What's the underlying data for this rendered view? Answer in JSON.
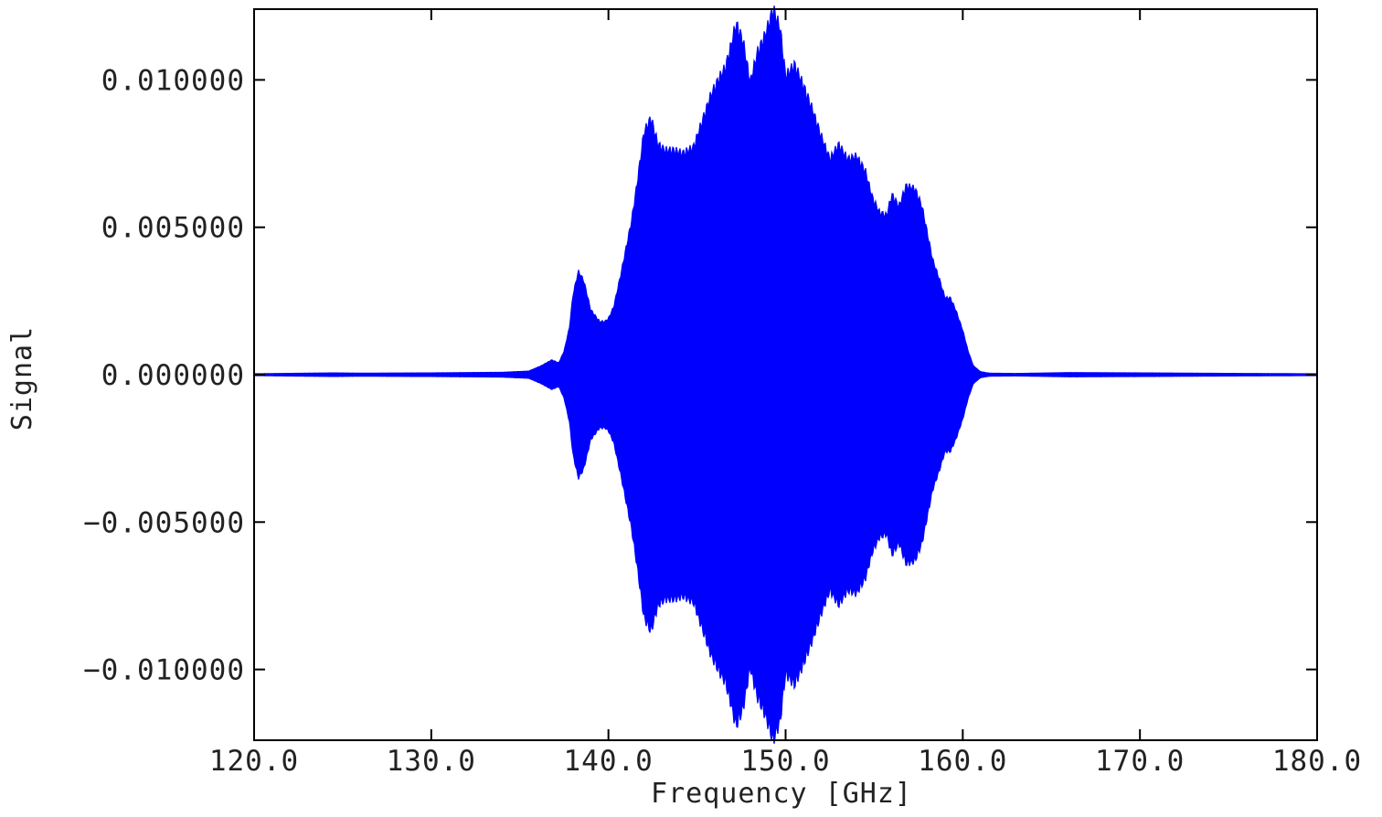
{
  "chart_data": {
    "type": "area",
    "xlabel": "Frequency [GHz]",
    "ylabel": "Signal",
    "xlim": [
      120.0,
      180.0
    ],
    "ylim": [
      -0.0124,
      0.0124
    ],
    "x_ticks": [
      "120.0",
      "130.0",
      "140.0",
      "150.0",
      "160.0",
      "170.0",
      "180.0"
    ],
    "x_tick_values": [
      120,
      130,
      140,
      150,
      160,
      170,
      180
    ],
    "y_ticks": [
      "0.010000",
      "0.005000",
      "0.000000",
      "−0.005000",
      "−0.010000"
    ],
    "y_tick_values": [
      0.01,
      0.005,
      0.0,
      -0.005,
      -0.01
    ],
    "grid": false,
    "legend": "none",
    "series": [
      {
        "color": "#0000ff",
        "style": "rapidly oscillating signal drawn as filled envelope symmetric about zero",
        "envelope_x": [
          120.0,
          124.5,
          126.0,
          130.0,
          134.0,
          135.5,
          136.2,
          136.8,
          137.2,
          137.5,
          137.8,
          138.0,
          138.3,
          138.6,
          139.0,
          139.5,
          139.8,
          140.0,
          140.3,
          140.7,
          141.0,
          141.3,
          141.6,
          142.0,
          142.4,
          142.8,
          143.2,
          143.7,
          144.2,
          144.8,
          145.3,
          145.8,
          146.3,
          146.6,
          146.9,
          147.2,
          147.6,
          148.0,
          148.4,
          148.7,
          148.9,
          149.3,
          149.7,
          150.0,
          150.5,
          151.0,
          151.5,
          152.0,
          152.5,
          153.0,
          153.5,
          154.0,
          154.5,
          154.9,
          155.3,
          155.7,
          156.0,
          156.4,
          156.8,
          157.3,
          157.7,
          158.0,
          158.3,
          158.7,
          159.0,
          159.3,
          159.6,
          160.0,
          160.3,
          160.6,
          161.0,
          161.5,
          163.0,
          166.0,
          170.0,
          173.0,
          176.0,
          180.0
        ],
        "envelope_y": [
          3e-05,
          6e-05,
          5e-05,
          6e-05,
          8e-05,
          0.00012,
          0.0003,
          0.0005,
          0.0004,
          0.0008,
          0.0016,
          0.0027,
          0.0035,
          0.0032,
          0.0022,
          0.0018,
          0.0018,
          0.0019,
          0.0023,
          0.0034,
          0.0043,
          0.0052,
          0.0064,
          0.0082,
          0.0087,
          0.0078,
          0.0076,
          0.0076,
          0.0075,
          0.0077,
          0.0086,
          0.0095,
          0.0101,
          0.0104,
          0.0111,
          0.0119,
          0.0113,
          0.0099,
          0.0109,
          0.0113,
          0.0116,
          0.0124,
          0.0117,
          0.0101,
          0.0105,
          0.0098,
          0.009,
          0.0081,
          0.0073,
          0.0078,
          0.0073,
          0.0074,
          0.0069,
          0.006,
          0.0055,
          0.0054,
          0.0061,
          0.0057,
          0.0064,
          0.0063,
          0.0057,
          0.0048,
          0.0039,
          0.0032,
          0.0026,
          0.0026,
          0.0022,
          0.0015,
          0.0008,
          0.0003,
          0.0001,
          5e-05,
          4e-05,
          7e-05,
          6e-05,
          5e-05,
          4e-05,
          3e-05
        ]
      }
    ]
  }
}
